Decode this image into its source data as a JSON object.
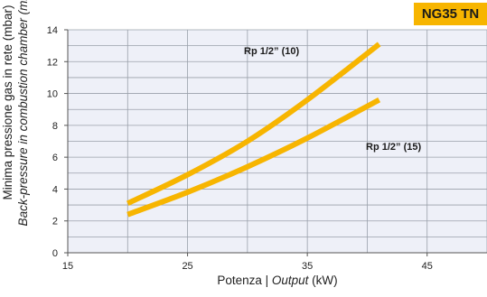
{
  "badge": "NG35 TN",
  "y_label_line1": "Minima pressione gas in rete (mbar)",
  "y_label_line2": "Back-pressure in combustion chamber (mbar)",
  "x_label_prefix": "Potenza | ",
  "x_label_italic": "Output",
  "x_label_suffix": " (kW)",
  "colors": {
    "curve": "#f7b500",
    "plot_bg": "#eef0f8",
    "grid": "#9aa0aa"
  },
  "chart_data": {
    "type": "line",
    "xlim": [
      15,
      50
    ],
    "ylim": [
      0,
      14
    ],
    "xticks": [
      15,
      25,
      35,
      45
    ],
    "yticks": [
      0,
      2,
      4,
      6,
      8,
      10,
      12,
      14
    ],
    "grid": true,
    "series": [
      {
        "name": "Rp 1/2” (10)",
        "x": [
          20,
          25,
          30,
          35,
          41
        ],
        "y": [
          3.1,
          4.9,
          7.0,
          9.6,
          13.1
        ]
      },
      {
        "name": "Rp 1/2” (15)",
        "x": [
          20,
          25,
          30,
          35,
          41
        ],
        "y": [
          2.4,
          3.8,
          5.4,
          7.2,
          9.6
        ]
      }
    ]
  }
}
